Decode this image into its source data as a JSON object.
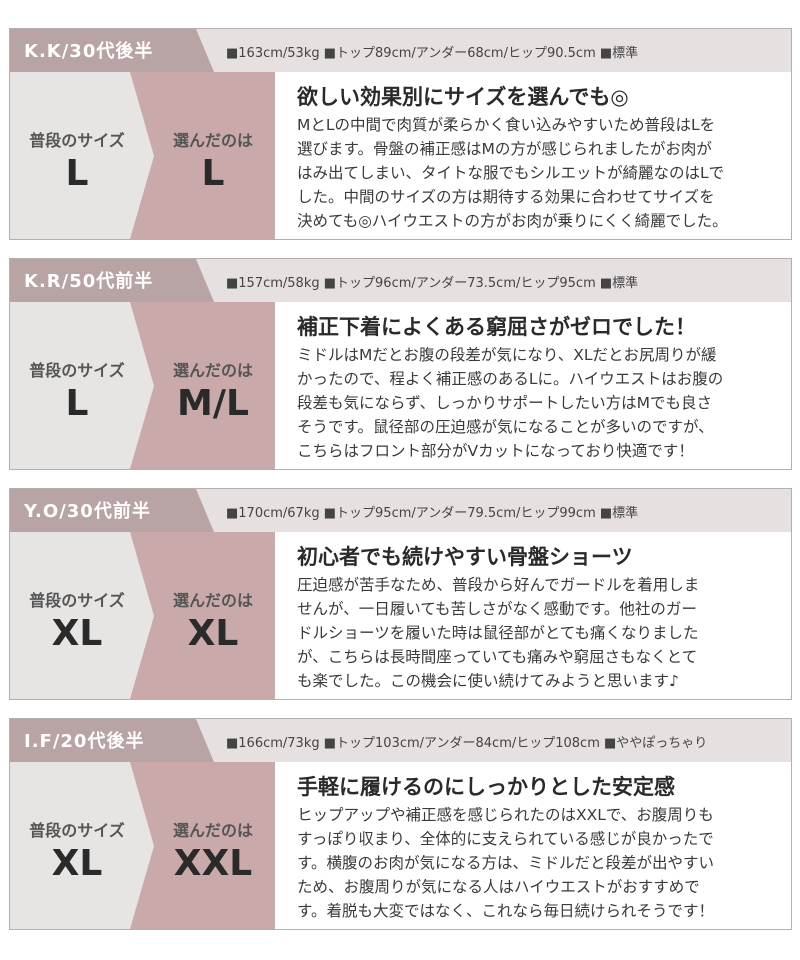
{
  "cards": [
    {
      "name": "K.K/30代後半",
      "stats": "■163cm/53kg ■トップ89cm/アンダー68cm/ヒップ90.5cm ■標準",
      "usual_label": "普段のサイズ",
      "usual": "L",
      "chosen_label": "選んだのは",
      "chosen": "L",
      "headline": "欲しい効果別にサイズを選んでも◎",
      "lines": [
        "MとLの中間で肉質が柔らかく食い込みやすいため普段はLを",
        "選びます。骨盤の補正感はMの方が感じられましたがお肉が",
        "はみ出てしまい、タイトな服でもシルエットが綺麗なのはLで",
        "した。中間のサイズの方は期待する効果に合わせてサイズを",
        "決めても◎ハイウエストの方がお肉が乗りにくく綺麗でした。"
      ]
    },
    {
      "name": "K.R/50代前半",
      "stats": "■157cm/58kg ■トップ96cm/アンダー73.5cm/ヒップ95cm ■標準",
      "usual_label": "普段のサイズ",
      "usual": "L",
      "chosen_label": "選んだのは",
      "chosen": "M/L",
      "headline": "補正下着によくある窮屈さがゼロでした！",
      "lines": [
        "ミドルはMだとお腹の段差が気になり、XLだとお尻周りが緩",
        "かったので、程よく補正感のあるLに。ハイウエストはお腹の",
        "段差も気にならず、しっかりサポートしたい方はMでも良さ",
        "そうです。鼠径部の圧迫感が気になることが多いのですが、",
        "こちらはフロント部分がVカットになっており快適です！"
      ]
    },
    {
      "name": "Y.O/30代前半",
      "stats": "■170cm/67kg ■トップ95cm/アンダー79.5cm/ヒップ99cm ■標準",
      "usual_label": "普段のサイズ",
      "usual": "XL",
      "chosen_label": "選んだのは",
      "chosen": "XL",
      "headline": "初心者でも続けやすい骨盤ショーツ",
      "lines": [
        "圧迫感が苦手なため、普段から好んでガードルを着用しま",
        "せんが、一日履いても苦しさがなく感動です。他社のガー",
        "ドルショーツを履いた時は鼠径部がとても痛くなりました",
        "が、こちらは長時間座っていても痛みや窮屈さもなくとて",
        "も楽でした。この機会に使い続けてみようと思います♪"
      ]
    },
    {
      "name": "I.F/20代後半",
      "stats": "■166cm/73kg ■トップ103cm/アンダー84cm/ヒップ108cm ■ややぽっちゃり",
      "usual_label": "普段のサイズ",
      "usual": "XL",
      "chosen_label": "選んだのは",
      "chosen": "XXL",
      "headline": "手軽に履けるのにしっかりとした安定感",
      "lines": [
        "ヒップアップや補正感を感じられたのはXXLで、お腹周りも",
        "すっぽり収まり、全体的に支えられている感じが良かったで",
        "す。横腹のお肉が気になる方は、ミドルだと段差が出やすい",
        "ため、お腹周りが気になる人はハイウエストがおすすめで",
        "す。着脱も大変ではなく、これなら毎日続けられそうです！"
      ]
    }
  ]
}
